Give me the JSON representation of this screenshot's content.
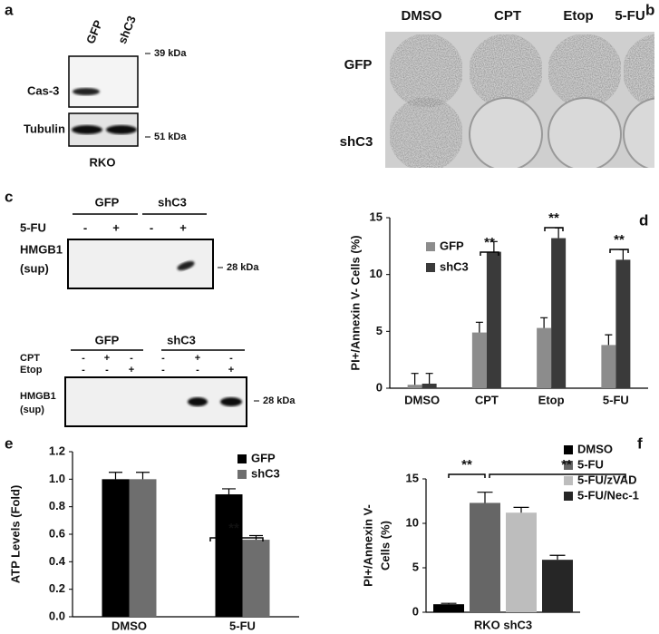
{
  "panels": {
    "a": {
      "label": "a",
      "lanes": [
        "GFP",
        "shC3"
      ],
      "rows": [
        "Cas-3",
        "Tubulin"
      ],
      "markers": [
        "39 kDa",
        "51 kDa"
      ],
      "cell_line": "RKO"
    },
    "b": {
      "label": "b",
      "columns": [
        "DMSO",
        "CPT",
        "Etop",
        "5-FU"
      ],
      "rows": [
        "GFP",
        "shC3"
      ]
    },
    "c": {
      "label": "c",
      "top": {
        "groups": [
          "GFP",
          "shC3"
        ],
        "treatment": "5-FU",
        "signs": [
          "-",
          "+",
          "-",
          "+"
        ],
        "protein": "HMGB1",
        "fraction": "(sup)",
        "marker": "28 kDa"
      },
      "bottom": {
        "groups": [
          "GFP",
          "shC3"
        ],
        "treatments": [
          {
            "name": "CPT",
            "signs": [
              "-",
              "+",
              "-",
              "-",
              "+",
              "-"
            ]
          },
          {
            "name": "Etop",
            "signs": [
              "-",
              "-",
              "+",
              "-",
              "-",
              "+"
            ]
          }
        ],
        "protein": "HMGB1",
        "fraction": "(sup)",
        "marker": "28 kDa"
      }
    }
  },
  "chart_data": [
    {
      "type": "bar",
      "panel_label": "d",
      "ylabel": [
        "PI+/Annexin V- Cells (%)"
      ],
      "categories": [
        "DMSO",
        "CPT",
        "Etop",
        "5-FU"
      ],
      "series": [
        {
          "name": "GFP",
          "color": "#8c8c8c",
          "values": [
            0.3,
            4.9,
            5.3,
            3.8
          ],
          "errors": [
            1.0,
            0.9,
            0.9,
            0.9
          ]
        },
        {
          "name": "shC3",
          "color": "#3a3a3a",
          "values": [
            0.4,
            12.0,
            13.2,
            11.3
          ],
          "errors": [
            0.9,
            0.9,
            0.9,
            0.9
          ]
        }
      ],
      "ylim": [
        0,
        15
      ],
      "yticks": [
        0,
        5,
        10,
        15
      ],
      "legend": "upper-left",
      "annotations": [
        "**",
        "**",
        "**"
      ]
    },
    {
      "type": "bar",
      "panel_label": "e",
      "ylabel": [
        "ATP Levels (Fold)"
      ],
      "categories": [
        "DMSO",
        "5-FU"
      ],
      "series": [
        {
          "name": "GFP",
          "color": "#000000",
          "values": [
            1.0,
            0.89
          ],
          "errors": [
            0.05,
            0.04
          ]
        },
        {
          "name": "shC3",
          "color": "#6e6e6e",
          "values": [
            1.0,
            0.56
          ],
          "errors": [
            0.05,
            0.03
          ]
        }
      ],
      "ylim": [
        0,
        1.2
      ],
      "yticks": [
        {
          "value": 0,
          "label": "0.0"
        },
        0.2,
        0.4,
        0.6,
        0.8,
        {
          "value": 1,
          "label": "1.0"
        },
        1.2
      ],
      "legend": "upper-right",
      "annotations": [
        "**"
      ]
    },
    {
      "type": "bar",
      "panel_label": "f",
      "ylabel": [
        "PI+/Annexin V-",
        "Cells (%)"
      ],
      "categories": [
        "RKO shC3"
      ],
      "series": [
        {
          "name": "DMSO",
          "color": "#000000",
          "values": [
            0.9
          ],
          "errors": [
            0.1
          ]
        },
        {
          "name": "5-FU",
          "color": "#666666",
          "values": [
            12.3
          ],
          "errors": [
            1.2
          ]
        },
        {
          "name": "5-FU/zVAD",
          "color": "#bdbdbd",
          "values": [
            11.2
          ],
          "errors": [
            0.6
          ]
        },
        {
          "name": "5-FU/Nec-1",
          "color": "#262626",
          "values": [
            5.9
          ],
          "errors": [
            0.5
          ]
        }
      ],
      "ylim": [
        0,
        15
      ],
      "yticks": [
        0,
        5,
        10,
        15
      ],
      "legend": "upper-right",
      "annotations": [
        "**",
        "**"
      ]
    }
  ]
}
